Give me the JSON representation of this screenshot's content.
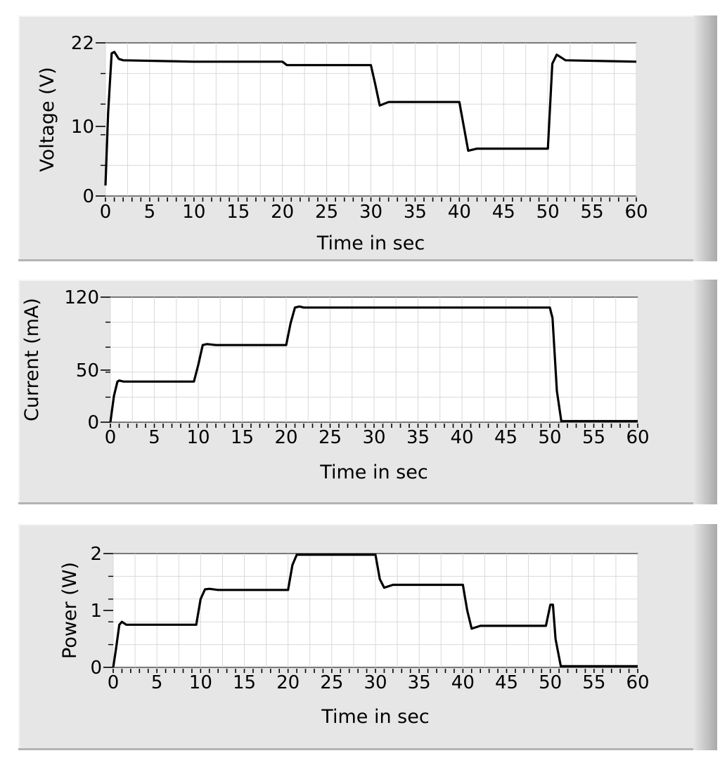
{
  "chart_data": [
    {
      "type": "line",
      "ylabel": "Voltage (V)",
      "xlabel": "Time in sec",
      "xlim": [
        0,
        60
      ],
      "ylim": [
        0,
        22
      ],
      "yticks": [
        0,
        10,
        22
      ],
      "xticks": [
        0,
        5,
        10,
        15,
        20,
        25,
        30,
        35,
        40,
        45,
        50,
        55,
        60
      ],
      "grid": true,
      "series": [
        {
          "x": [
            0,
            0.3,
            0.7,
            1.0,
            1.5,
            2.0,
            10,
            20,
            20.5,
            30,
            30.5,
            31,
            32,
            40,
            40.5,
            41,
            42,
            50,
            50.5,
            51,
            52,
            60
          ],
          "y": [
            1.5,
            12,
            20.5,
            20.7,
            19.7,
            19.5,
            19.3,
            19.3,
            18.8,
            18.8,
            16,
            13,
            13.5,
            13.5,
            10,
            6.5,
            6.8,
            6.8,
            19,
            20.3,
            19.5,
            19.3
          ]
        }
      ]
    },
    {
      "type": "line",
      "ylabel": "Current (mA)",
      "xlabel": "Time in sec",
      "xlim": [
        0,
        60
      ],
      "ylim": [
        0,
        120
      ],
      "yticks": [
        0,
        50,
        120
      ],
      "xticks": [
        0,
        5,
        10,
        15,
        20,
        25,
        30,
        35,
        40,
        45,
        50,
        55,
        60
      ],
      "grid": true,
      "series": [
        {
          "x": [
            0,
            0.4,
            0.8,
            1.0,
            1.5,
            9.5,
            10,
            10.5,
            11,
            12,
            20,
            20.5,
            21,
            21.5,
            22,
            50,
            50.3,
            50.8,
            51.3,
            60
          ],
          "y": [
            0,
            25,
            39,
            40,
            39,
            39,
            55,
            74,
            75,
            74,
            74,
            95,
            110,
            111,
            110,
            110,
            100,
            30,
            1,
            1
          ]
        }
      ]
    },
    {
      "type": "line",
      "ylabel": "Power (W)",
      "xlabel": "Time in sec",
      "xlim": [
        0,
        60
      ],
      "ylim": [
        0,
        2
      ],
      "yticks": [
        0,
        1,
        2
      ],
      "xticks": [
        0,
        5,
        10,
        15,
        20,
        25,
        30,
        35,
        40,
        45,
        50,
        55,
        60
      ],
      "grid": true,
      "series": [
        {
          "x": [
            0,
            0.3,
            0.7,
            1.0,
            1.5,
            9.5,
            10,
            10.5,
            11,
            12,
            20,
            20.5,
            21,
            22,
            30,
            30.5,
            31,
            32,
            40,
            40.5,
            41,
            42,
            49.5,
            50,
            50.3,
            50.6,
            51.2,
            60
          ],
          "y": [
            0,
            0.3,
            0.75,
            0.8,
            0.75,
            0.75,
            1.2,
            1.37,
            1.38,
            1.36,
            1.36,
            1.8,
            1.98,
            1.98,
            1.98,
            1.55,
            1.4,
            1.45,
            1.45,
            1.0,
            0.68,
            0.73,
            0.73,
            1.1,
            1.1,
            0.5,
            0.02,
            0.02
          ]
        }
      ]
    }
  ]
}
